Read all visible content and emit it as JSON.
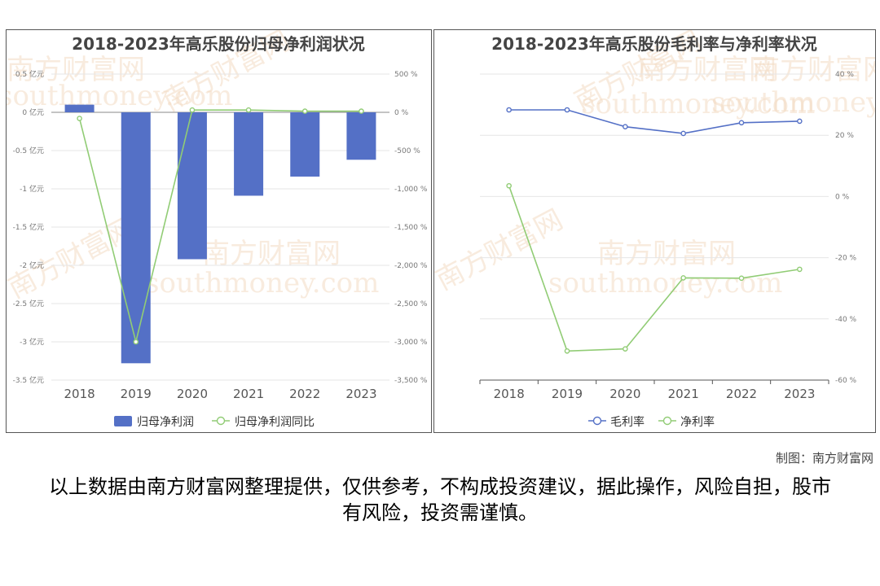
{
  "credit": "制图：南方财富网",
  "disclaimer": "以上数据由南方财富网整理提供，仅供参考，不构成投资建议，据此操作，风险自担，股市有风险，投资需谨慎。",
  "watermark": [
    "南方财富网",
    "southmoney.com"
  ],
  "colors": {
    "bar": "#5470c6",
    "green": "#91cc75",
    "blue": "#5470c6"
  },
  "chart_data": [
    {
      "type": "bar",
      "title": "2018-2023年高乐股份归母净利润状况",
      "categories": [
        "2018",
        "2019",
        "2020",
        "2021",
        "2022",
        "2023"
      ],
      "series": [
        {
          "name": "归母净利润",
          "type": "bar",
          "axis": "left",
          "values": [
            0.1,
            -3.28,
            -1.92,
            -1.09,
            -0.84,
            -0.62
          ]
        },
        {
          "name": "归母净利润同比",
          "type": "line",
          "axis": "right",
          "values": [
            -80,
            -3000,
            30,
            30,
            15,
            15
          ]
        }
      ],
      "left_axis": {
        "ticks": [
          "0.5 亿元",
          "0 亿元",
          "-0.5 亿元",
          "-1 亿元",
          "-1.5 亿元",
          "-2 亿元",
          "-2.5 亿元",
          "-3 亿元",
          "-3.5 亿元"
        ],
        "ylim": [
          -3.5,
          0.5
        ]
      },
      "right_axis": {
        "ticks": [
          "500 %",
          "0 %",
          "-500 %",
          "-1,000 %",
          "-1,500 %",
          "-2,000 %",
          "-2,500 %",
          "-3,000 %",
          "-3,500 %"
        ],
        "ylim": [
          -3500,
          500
        ]
      },
      "legend": {
        "items": [
          "归母净利润",
          "归母净利润同比"
        ],
        "placement": "bottom"
      }
    },
    {
      "type": "line",
      "title": "2018-2023年高乐股份毛利率与净利率状况",
      "categories": [
        "2018",
        "2019",
        "2020",
        "2021",
        "2022",
        "2023"
      ],
      "series": [
        {
          "name": "毛利率",
          "values": [
            28.3,
            28.3,
            22.8,
            20.6,
            24.1,
            24.6
          ]
        },
        {
          "name": "净利率",
          "values": [
            3.5,
            -50.5,
            -49.8,
            -26.6,
            -26.7,
            -23.8
          ]
        }
      ],
      "right_axis": {
        "ticks": [
          "40 %",
          "20 %",
          "0 %",
          "-20 %",
          "-40 %",
          "-60 %"
        ],
        "ylim": [
          -60,
          40
        ]
      },
      "legend": {
        "items": [
          "毛利率",
          "净利率"
        ],
        "placement": "bottom"
      }
    }
  ]
}
